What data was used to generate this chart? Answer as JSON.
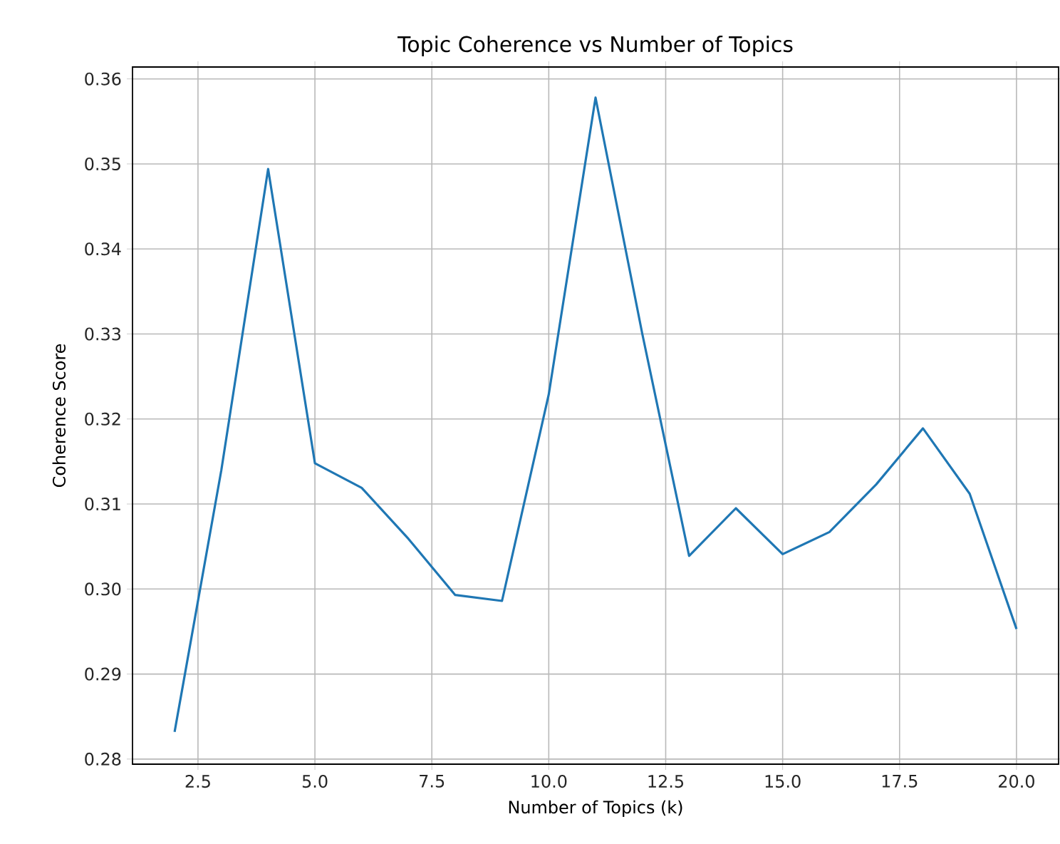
{
  "chart_data": {
    "type": "line",
    "title": "Topic Coherence vs Number of Topics",
    "xlabel": "Number of Topics (k)",
    "ylabel": "Coherence Score",
    "x": [
      2,
      3,
      4,
      5,
      6,
      7,
      8,
      9,
      10,
      11,
      12,
      13,
      14,
      15,
      16,
      17,
      18,
      19,
      20
    ],
    "series": [
      {
        "color": "#1f77b4",
        "values": [
          0.2832,
          0.314,
          0.3494,
          0.3148,
          0.3119,
          0.3059,
          0.2993,
          0.2986,
          0.3229,
          0.3578,
          0.33,
          0.3039,
          0.3095,
          0.3041,
          0.3067,
          0.3123,
          0.3189,
          0.3112,
          0.2953
        ]
      }
    ],
    "xlim": [
      1.1,
      20.9
    ],
    "ylim": [
      0.2794,
      0.3614
    ],
    "xticks": [
      {
        "value": 2.5,
        "label": "2.5"
      },
      {
        "value": 5,
        "label": "5.0"
      },
      {
        "value": 7.5,
        "label": "7.5"
      },
      {
        "value": 10,
        "label": "10.0"
      },
      {
        "value": 12.5,
        "label": "12.5"
      },
      {
        "value": 15,
        "label": "15.0"
      },
      {
        "value": 17.5,
        "label": "17.5"
      },
      {
        "value": 20,
        "label": "20.0"
      }
    ],
    "yticks": [
      {
        "value": 0.28,
        "label": "0.28"
      },
      {
        "value": 0.29,
        "label": "0.29"
      },
      {
        "value": 0.3,
        "label": "0.30"
      },
      {
        "value": 0.31,
        "label": "0.31"
      },
      {
        "value": 0.32,
        "label": "0.32"
      },
      {
        "value": 0.33,
        "label": "0.33"
      },
      {
        "value": 0.34,
        "label": "0.34"
      },
      {
        "value": 0.35,
        "label": "0.35"
      },
      {
        "value": 0.36,
        "label": "0.36"
      }
    ],
    "grid": true
  }
}
